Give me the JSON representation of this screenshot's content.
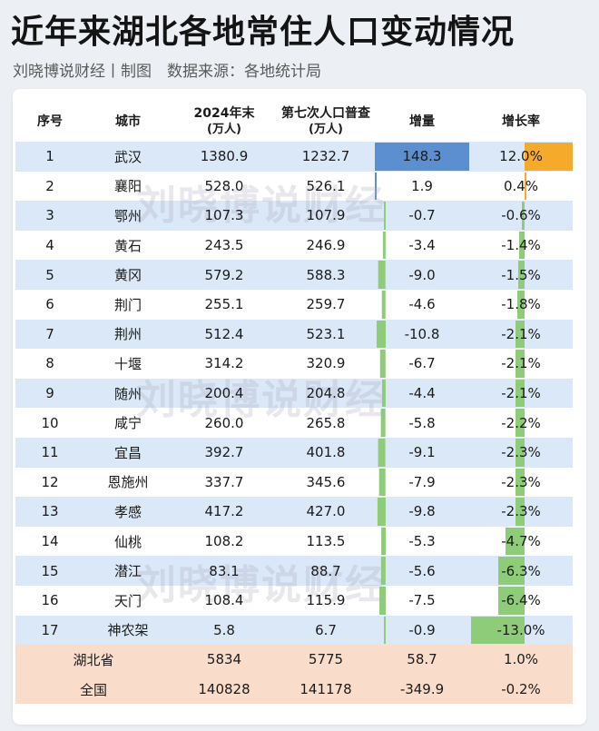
{
  "title": "近年来湖北各地常住人口变动情况",
  "subtitle": "刘晓博说财经丨制图　数据来源：各地统计局",
  "watermark": "刘晓博说财经",
  "colors": {
    "increase_positive": "#5b8fd0",
    "rate_positive": "#f5aa2b",
    "negative": "#8fcc79",
    "alt_row": "#dbe8f7",
    "summary_row": "#fadccb"
  },
  "table": {
    "headers": {
      "idx": "序号",
      "city": "城市",
      "pop2024": "2024年末",
      "pop2024_unit": "(万人)",
      "census": "第七次人口普查",
      "census_unit": "(万人)",
      "increase": "增量",
      "rate": "增长率"
    },
    "rows": [
      {
        "idx": "1",
        "city": "武汉",
        "pop2024": "1380.9",
        "census": "1232.7",
        "increase": "148.3",
        "rate": "12.0%",
        "inc_value": 148.3,
        "rate_value": 12.0
      },
      {
        "idx": "2",
        "city": "襄阳",
        "pop2024": "528.0",
        "census": "526.1",
        "increase": "1.9",
        "rate": "0.4%",
        "inc_value": 1.9,
        "rate_value": 0.4
      },
      {
        "idx": "3",
        "city": "鄂州",
        "pop2024": "107.3",
        "census": "107.9",
        "increase": "-0.7",
        "rate": "-0.6%",
        "inc_value": -0.7,
        "rate_value": -0.6
      },
      {
        "idx": "4",
        "city": "黄石",
        "pop2024": "243.5",
        "census": "246.9",
        "increase": "-3.4",
        "rate": "-1.4%",
        "inc_value": -3.4,
        "rate_value": -1.4
      },
      {
        "idx": "5",
        "city": "黄冈",
        "pop2024": "579.2",
        "census": "588.3",
        "increase": "-9.0",
        "rate": "-1.5%",
        "inc_value": -9.0,
        "rate_value": -1.5
      },
      {
        "idx": "6",
        "city": "荆门",
        "pop2024": "255.1",
        "census": "259.7",
        "increase": "-4.6",
        "rate": "-1.8%",
        "inc_value": -4.6,
        "rate_value": -1.8
      },
      {
        "idx": "7",
        "city": "荆州",
        "pop2024": "512.4",
        "census": "523.1",
        "increase": "-10.8",
        "rate": "-2.1%",
        "inc_value": -10.8,
        "rate_value": -2.1
      },
      {
        "idx": "8",
        "city": "十堰",
        "pop2024": "314.2",
        "census": "320.9",
        "increase": "-6.7",
        "rate": "-2.1%",
        "inc_value": -6.7,
        "rate_value": -2.1
      },
      {
        "idx": "9",
        "city": "随州",
        "pop2024": "200.4",
        "census": "204.8",
        "increase": "-4.4",
        "rate": "-2.1%",
        "inc_value": -4.4,
        "rate_value": -2.1
      },
      {
        "idx": "10",
        "city": "咸宁",
        "pop2024": "260.0",
        "census": "265.8",
        "increase": "-5.8",
        "rate": "-2.2%",
        "inc_value": -5.8,
        "rate_value": -2.2
      },
      {
        "idx": "11",
        "city": "宜昌",
        "pop2024": "392.7",
        "census": "401.8",
        "increase": "-9.1",
        "rate": "-2.3%",
        "inc_value": -9.1,
        "rate_value": -2.3
      },
      {
        "idx": "12",
        "city": "恩施州",
        "pop2024": "337.7",
        "census": "345.6",
        "increase": "-7.9",
        "rate": "-2.3%",
        "inc_value": -7.9,
        "rate_value": -2.3
      },
      {
        "idx": "13",
        "city": "孝感",
        "pop2024": "417.2",
        "census": "427.0",
        "increase": "-9.8",
        "rate": "-2.3%",
        "inc_value": -9.8,
        "rate_value": -2.3
      },
      {
        "idx": "14",
        "city": "仙桃",
        "pop2024": "108.2",
        "census": "113.5",
        "increase": "-5.3",
        "rate": "-4.7%",
        "inc_value": -5.3,
        "rate_value": -4.7
      },
      {
        "idx": "15",
        "city": "潜江",
        "pop2024": "83.1",
        "census": "88.7",
        "increase": "-5.6",
        "rate": "-6.3%",
        "inc_value": -5.6,
        "rate_value": -6.3
      },
      {
        "idx": "16",
        "city": "天门",
        "pop2024": "108.4",
        "census": "115.9",
        "increase": "-7.5",
        "rate": "-6.4%",
        "inc_value": -7.5,
        "rate_value": -6.4
      },
      {
        "idx": "17",
        "city": "神农架",
        "pop2024": "5.8",
        "census": "6.7",
        "increase": "-0.9",
        "rate": "-13.0%",
        "inc_value": -0.9,
        "rate_value": -13.0
      }
    ],
    "summary": [
      {
        "city": "湖北省",
        "pop2024": "5834",
        "census": "5775",
        "increase": "58.7",
        "rate": "1.0%"
      },
      {
        "city": "全国",
        "pop2024": "140828",
        "census": "141178",
        "increase": "-349.9",
        "rate": "-0.2%"
      }
    ]
  }
}
